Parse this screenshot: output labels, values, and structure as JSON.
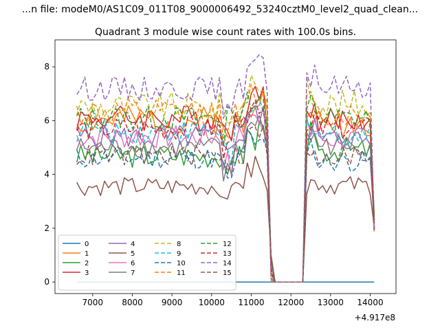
{
  "chart_data": {
    "type": "line",
    "suptitle": "...n file: modeM0/AS1C09_011T08_9000006492_53240cztM0_level2_quad_clean...",
    "title": "Quadrant 3 module wise count rates with 100.0s bins.",
    "xlabel": "",
    "ylabel": "",
    "x_offset_label": "+4.917e8",
    "xlim": [
      6050,
      14650
    ],
    "ylim": [
      -0.43,
      9.0
    ],
    "xticks": [
      7000,
      8000,
      9000,
      10000,
      11000,
      12000,
      13000,
      14000
    ],
    "yticks": [
      0,
      2,
      4,
      6,
      8
    ],
    "grid": false,
    "legend": {
      "placement": "lower-left",
      "columns": 4,
      "entries": [
        "0",
        "1",
        "2",
        "3",
        "4",
        "5",
        "6",
        "7",
        "8",
        "9",
        "10",
        "11",
        "12",
        "13",
        "14",
        "15"
      ]
    },
    "x": {
      "segment_a": {
        "start": 6600,
        "end": 11400,
        "step": 100
      },
      "drop": [
        11500,
        11600,
        12200,
        12300
      ],
      "segment_b": {
        "start": 12400,
        "end": 14100,
        "step": 100
      }
    },
    "series": [
      {
        "name": "0",
        "color": "#1f77b4",
        "dash": "solid",
        "level": 0.0,
        "spread": 0.0,
        "b_level": 0.0,
        "seed": 1
      },
      {
        "name": "1",
        "color": "#ff7f0e",
        "dash": "solid",
        "level": 6.0,
        "spread": 0.55,
        "b_level": 5.9,
        "seed": 2
      },
      {
        "name": "2",
        "color": "#2ca02c",
        "dash": "solid",
        "level": 4.7,
        "spread": 0.45,
        "b_level": 4.9,
        "seed": 3
      },
      {
        "name": "3",
        "color": "#d62728",
        "dash": "solid",
        "level": 6.1,
        "spread": 0.5,
        "b_level": 6.0,
        "seed": 4
      },
      {
        "name": "4",
        "color": "#9467bd",
        "dash": "solid",
        "level": 5.4,
        "spread": 0.45,
        "b_level": 5.3,
        "seed": 5
      },
      {
        "name": "5",
        "color": "#8c564b",
        "dash": "solid",
        "level": 3.55,
        "spread": 0.35,
        "b_level": 3.6,
        "seed": 6
      },
      {
        "name": "6",
        "color": "#e377c2",
        "dash": "solid",
        "level": 5.4,
        "spread": 0.45,
        "b_level": 5.3,
        "seed": 7
      },
      {
        "name": "7",
        "color": "#7f7f7f",
        "dash": "solid",
        "level": 5.0,
        "spread": 0.4,
        "b_level": 5.1,
        "seed": 8
      },
      {
        "name": "8",
        "color": "#bcbd22",
        "dash": "dashed",
        "level": 6.5,
        "spread": 0.55,
        "b_level": 6.6,
        "seed": 9
      },
      {
        "name": "9",
        "color": "#17becf",
        "dash": "dashed",
        "level": 5.6,
        "spread": 0.45,
        "b_level": 5.5,
        "seed": 10
      },
      {
        "name": "10",
        "color": "#1f77b4",
        "dash": "dashed",
        "level": 4.6,
        "spread": 0.4,
        "b_level": 4.5,
        "seed": 11
      },
      {
        "name": "11",
        "color": "#ff7f0e",
        "dash": "dashed",
        "level": 6.3,
        "spread": 0.5,
        "b_level": 6.2,
        "seed": 12
      },
      {
        "name": "12",
        "color": "#2ca02c",
        "dash": "dashed",
        "level": 6.1,
        "spread": 0.45,
        "b_level": 6.1,
        "seed": 13
      },
      {
        "name": "13",
        "color": "#d62728",
        "dash": "dashed",
        "level": 5.7,
        "spread": 0.45,
        "b_level": 5.7,
        "seed": 14
      },
      {
        "name": "14",
        "color": "#9467bd",
        "dash": "dashed",
        "level": 7.2,
        "spread": 0.45,
        "b_level": 7.3,
        "seed": 15
      },
      {
        "name": "15",
        "color": "#8c564b",
        "dash": "dashed",
        "level": 4.7,
        "spread": 0.4,
        "b_level": 4.7,
        "seed": 16
      }
    ]
  }
}
